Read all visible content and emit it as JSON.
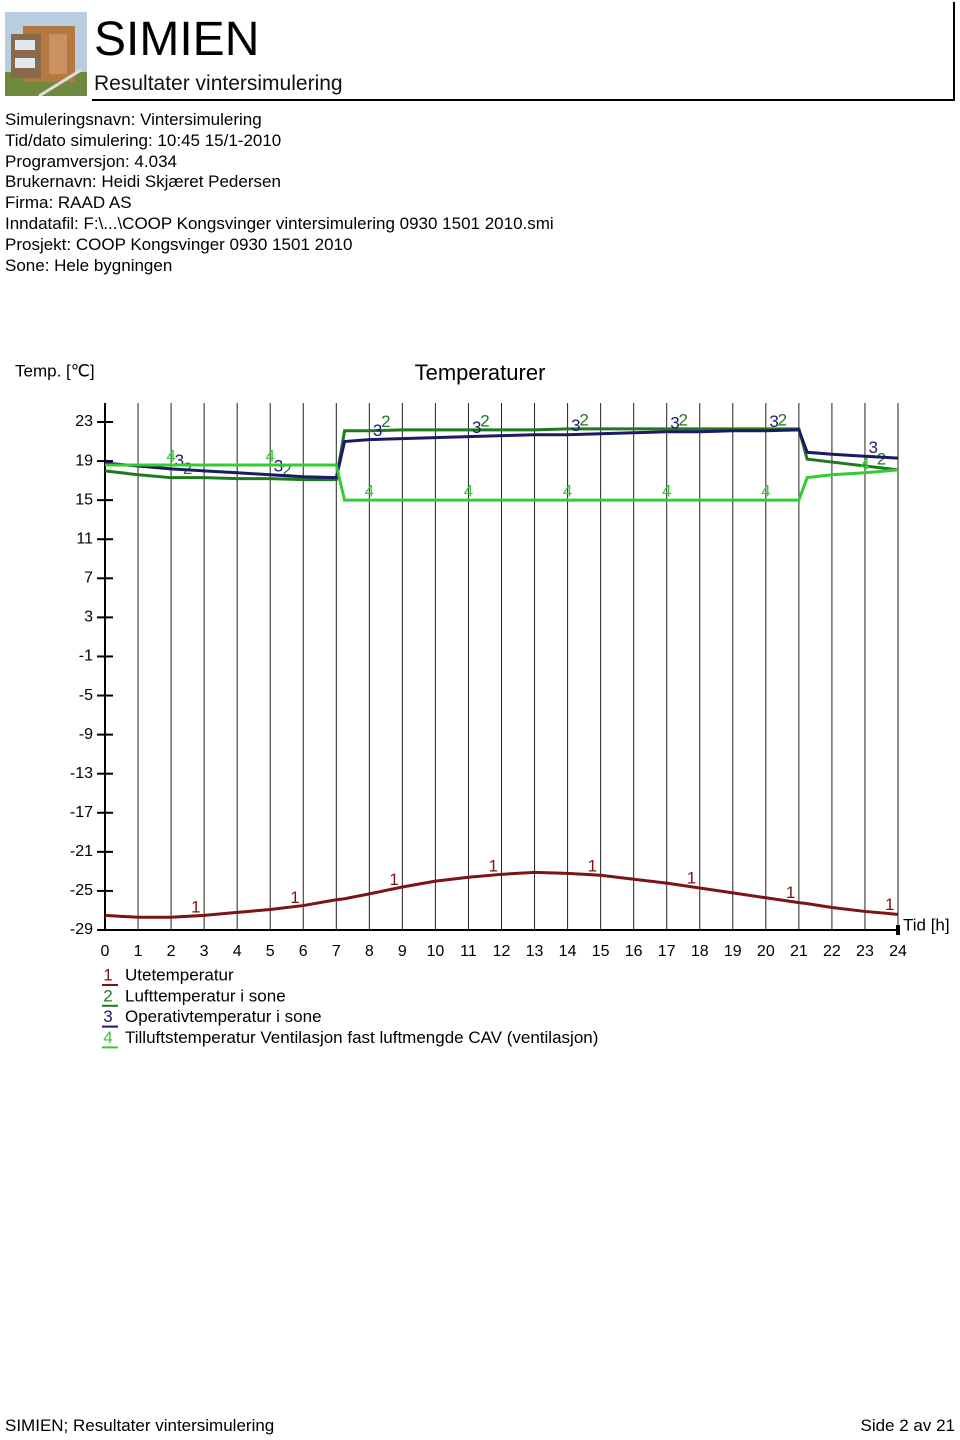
{
  "header": {
    "title": "SIMIEN",
    "subtitle": "Resultater vintersimulering"
  },
  "info": [
    "Simuleringsnavn: Vintersimulering",
    "Tid/dato simulering: 10:45 15/1-2010",
    "Programversjon: 4.034",
    "Brukernavn: Heidi Skjæret Pedersen",
    "Firma: RAAD AS",
    "Inndatafil: F:\\...\\COOP Kongsvinger vintersimulering 0930 1501 2010.smi",
    "Prosjekt: COOP Kongsvinger 0930 1501 2010",
    "Sone: Hele bygningen"
  ],
  "chart_data": {
    "type": "line",
    "title": "Temperaturer",
    "y_label": "Temp. [℃]",
    "x_label": "Tid [h]",
    "x": [
      0,
      1,
      2,
      3,
      4,
      5,
      6,
      7,
      7.25,
      8,
      9,
      10,
      11,
      12,
      13,
      14,
      15,
      16,
      17,
      18,
      19,
      20,
      21,
      21.25,
      22,
      23,
      24
    ],
    "series": [
      {
        "name": "Utetemperatur",
        "marker": "1",
        "color": "#7b1414",
        "values": [
          -27.5,
          -27.7,
          -27.7,
          -27.5,
          -27.2,
          -26.9,
          -26.5,
          -25.9,
          -25.8,
          -25.3,
          -24.6,
          -24.0,
          -23.6,
          -23.3,
          -23.1,
          -23.2,
          -23.4,
          -23.8,
          -24.2,
          -24.7,
          -25.2,
          -25.7,
          -26.2,
          -26.3,
          -26.7,
          -27.1,
          -27.4
        ]
      },
      {
        "name": "Lufttemperatur i sone",
        "marker": "2",
        "color": "#1f7a1f",
        "values": [
          18.0,
          17.6,
          17.3,
          17.3,
          17.2,
          17.2,
          17.1,
          17.1,
          22.1,
          22.1,
          22.2,
          22.2,
          22.2,
          22.2,
          22.2,
          22.3,
          22.3,
          22.3,
          22.3,
          22.3,
          22.3,
          22.3,
          22.3,
          19.2,
          18.9,
          18.5,
          18.1
        ]
      },
      {
        "name": "Operativtemperatur i sone",
        "marker": "3",
        "color": "#1a1a66",
        "values": [
          18.8,
          18.5,
          18.2,
          18.0,
          17.8,
          17.6,
          17.4,
          17.3,
          21.0,
          21.2,
          21.3,
          21.4,
          21.5,
          21.6,
          21.7,
          21.7,
          21.8,
          21.9,
          22.0,
          22.0,
          22.1,
          22.1,
          22.2,
          19.9,
          19.7,
          19.5,
          19.3
        ]
      },
      {
        "name": "Tilluftstemperatur Ventilasjon fast luftmengde CAV (ventilasjon)",
        "marker": "4",
        "color": "#33cc33",
        "values": [
          18.6,
          18.6,
          18.6,
          18.6,
          18.6,
          18.6,
          18.6,
          18.6,
          15.0,
          15.0,
          15.0,
          15.0,
          15.0,
          15.0,
          15.0,
          15.0,
          15.0,
          15.0,
          15.0,
          15.0,
          15.0,
          15.0,
          15.0,
          17.3,
          17.6,
          17.8,
          18.1
        ]
      }
    ],
    "xlim": [
      0,
      24
    ],
    "xticks": [
      0,
      1,
      2,
      3,
      4,
      5,
      6,
      7,
      8,
      9,
      10,
      11,
      12,
      13,
      14,
      15,
      16,
      17,
      18,
      19,
      20,
      21,
      22,
      23,
      24
    ],
    "ylim": [
      -29,
      23
    ],
    "yticks": [
      23,
      19,
      15,
      11,
      7,
      3,
      -1,
      -5,
      -9,
      -13,
      -17,
      -21,
      -25,
      -29
    ],
    "grid": true
  },
  "footer": {
    "left": "SIMIEN; Resultater vintersimulering",
    "right": "Side 2 av 21"
  }
}
